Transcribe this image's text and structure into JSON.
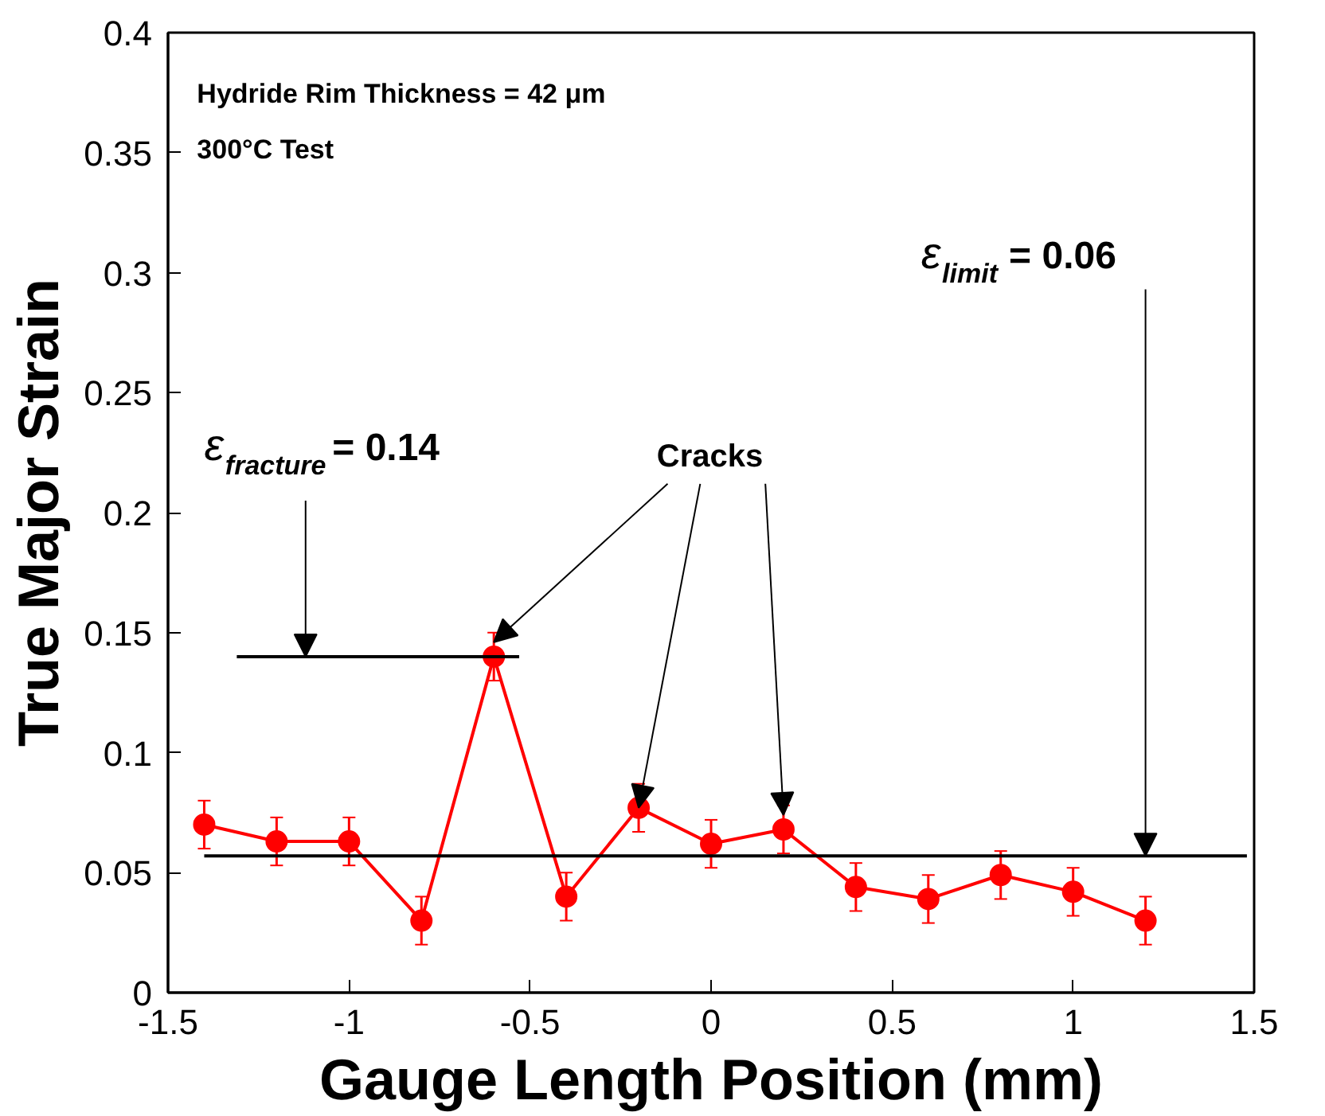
{
  "chart_data": {
    "type": "line",
    "xlabel": "Gauge Length Position (mm)",
    "ylabel": "True Major Strain",
    "xlim": [
      -1.5,
      1.5
    ],
    "xticks": [
      -1.5,
      -1,
      -0.5,
      0,
      0.5,
      1,
      1.5
    ],
    "ylim": [
      0,
      0.4
    ],
    "yticks": [
      0,
      0.05,
      0.1,
      0.15,
      0.2,
      0.25,
      0.3,
      0.35,
      0.4
    ],
    "grid": false,
    "series": [
      {
        "type": "line",
        "color": "#ff0000",
        "marker": "circle",
        "line_style": "solid",
        "x": [
          -1.4,
          -1.2,
          -1,
          -0.8,
          -0.6,
          -0.4,
          -0.2,
          0,
          0.2,
          0.4,
          0.6,
          0.8,
          1,
          1.2
        ],
        "values": [
          0.07,
          0.063,
          0.063,
          0.03,
          0.14,
          0.04,
          0.077,
          0.062,
          0.068,
          0.044,
          0.039,
          0.049,
          0.042,
          0.03
        ],
        "errors": [
          0.01,
          0.01,
          0.01,
          0.01,
          0.01,
          0.01,
          0.01,
          0.01,
          0.01,
          0.01,
          0.01,
          0.01,
          0.01,
          0.01
        ]
      },
      {
        "type": "line",
        "color": "#000000",
        "marker": "none",
        "line_style": "solid",
        "x": [
          -1.31,
          -0.53
        ],
        "values": [
          0.14,
          0.14
        ]
      },
      {
        "type": "line",
        "color": "#000000",
        "marker": "none",
        "line_style": "solid",
        "x": [
          -1.4,
          1.48
        ],
        "values": [
          0.057,
          0.057
        ]
      }
    ],
    "annotations": [
      "Hydride Rim Thickness = 42 μm",
      "300°C Test",
      {
        "text": "ε$_{fracture}$ = 0.14",
        "x": -1.12,
        "y": 0.14
      },
      {
        "text": "ε$_{limit}$ = 0.06",
        "x": 1.2,
        "y": 0.057
      },
      {
        "text": "Cracks",
        "x": -0.2,
        "y": 0.077
      }
    ]
  }
}
